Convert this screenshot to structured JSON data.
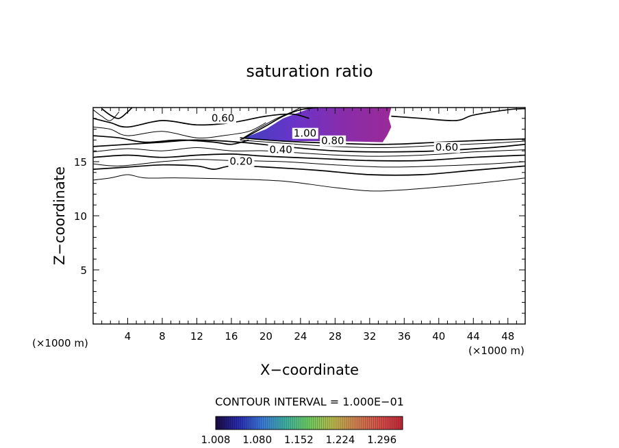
{
  "chart_data": {
    "type": "contour",
    "title": "saturation ratio",
    "xlabel": "X−coordinate",
    "ylabel": "Z−coordinate",
    "x_unit_left": "(×1000 m)",
    "x_unit_right": "(×1000 m)",
    "xlim": [
      0,
      50
    ],
    "ylim": [
      0,
      20
    ],
    "x_ticks": [
      4,
      8,
      12,
      16,
      20,
      24,
      28,
      32,
      36,
      40,
      44,
      48
    ],
    "y_ticks": [
      5,
      10,
      15
    ],
    "contour_interval_text": "CONTOUR INTERVAL = 1.000E−01",
    "contour_labels": [
      {
        "text": "0.60",
        "x": 13.7,
        "y": 18.7
      },
      {
        "text": "1.00",
        "x": 23.2,
        "y": 17.3
      },
      {
        "text": "0.80",
        "x": 26.4,
        "y": 16.6
      },
      {
        "text": "0.40",
        "x": 20.4,
        "y": 15.8
      },
      {
        "text": "0.60",
        "x": 39.6,
        "y": 16.0
      },
      {
        "text": "0.20",
        "x": 15.8,
        "y": 14.7
      }
    ],
    "contour_lines": [
      {
        "level": 0.1,
        "points": [
          [
            0,
            13.3
          ],
          [
            2,
            13.5
          ],
          [
            4,
            13.8
          ],
          [
            6,
            13.5
          ],
          [
            10,
            13.5
          ],
          [
            16,
            13.4
          ],
          [
            22,
            13.2
          ],
          [
            28,
            12.6
          ],
          [
            32,
            12.3
          ],
          [
            36,
            12.4
          ],
          [
            42,
            12.8
          ],
          [
            48,
            13.3
          ],
          [
            50,
            13.5
          ]
        ]
      },
      {
        "level": 0.2,
        "points": [
          [
            0,
            14.3
          ],
          [
            4,
            14.5
          ],
          [
            8,
            14.7
          ],
          [
            12,
            14.6
          ],
          [
            14,
            14.3
          ],
          [
            16,
            14.6
          ],
          [
            20,
            14.5
          ],
          [
            26,
            14.2
          ],
          [
            32,
            13.8
          ],
          [
            38,
            13.8
          ],
          [
            44,
            14.2
          ],
          [
            50,
            14.6
          ]
        ]
      },
      {
        "level": 0.3,
        "points": [
          [
            0,
            14.8
          ],
          [
            3,
            14.6
          ],
          [
            8,
            15.0
          ],
          [
            12,
            15.2
          ],
          [
            16,
            15.1
          ],
          [
            22,
            15.0
          ],
          [
            28,
            14.7
          ],
          [
            34,
            14.5
          ],
          [
            40,
            14.6
          ],
          [
            46,
            14.8
          ],
          [
            50,
            15.0
          ]
        ]
      },
      {
        "level": 0.4,
        "points": [
          [
            0,
            15.4
          ],
          [
            4,
            15.6
          ],
          [
            8,
            15.4
          ],
          [
            12,
            15.6
          ],
          [
            16,
            15.7
          ],
          [
            20,
            15.5
          ],
          [
            26,
            15.3
          ],
          [
            32,
            15.1
          ],
          [
            38,
            15.1
          ],
          [
            44,
            15.4
          ],
          [
            50,
            15.6
          ]
        ]
      },
      {
        "level": 0.5,
        "points": [
          [
            0,
            15.9
          ],
          [
            4,
            16.2
          ],
          [
            8,
            16.0
          ],
          [
            12,
            16.3
          ],
          [
            16,
            16.0
          ],
          [
            20,
            16.0
          ],
          [
            26,
            15.7
          ],
          [
            32,
            15.5
          ],
          [
            38,
            15.6
          ],
          [
            44,
            15.9
          ],
          [
            50,
            16.1
          ]
        ]
      },
      {
        "level": 0.6,
        "points": [
          [
            0,
            16.4
          ],
          [
            4,
            16.6
          ],
          [
            8,
            16.8
          ],
          [
            12,
            17.0
          ],
          [
            17,
            16.8
          ],
          [
            22,
            16.4
          ],
          [
            28,
            16.0
          ],
          [
            34,
            15.9
          ],
          [
            40,
            16.0
          ],
          [
            46,
            16.3
          ],
          [
            50,
            16.6
          ]
        ]
      },
      {
        "level": 0.7,
        "points": [
          [
            17,
            17.0
          ],
          [
            22,
            16.7
          ],
          [
            28,
            16.4
          ],
          [
            34,
            16.3
          ],
          [
            40,
            16.5
          ],
          [
            46,
            16.7
          ],
          [
            50,
            16.9
          ]
        ]
      },
      {
        "level": 0.8,
        "points": [
          [
            17,
            17.2
          ],
          [
            22,
            16.9
          ],
          [
            28,
            16.7
          ],
          [
            34,
            16.6
          ],
          [
            40,
            16.8
          ],
          [
            46,
            17.0
          ],
          [
            50,
            17.1
          ]
        ]
      },
      {
        "level": 0.6,
        "points": [
          [
            0,
            19.0
          ],
          [
            2,
            18.6
          ],
          [
            4,
            18.2
          ],
          [
            8,
            18.8
          ],
          [
            12,
            18.4
          ],
          [
            16,
            18.6
          ],
          [
            20,
            19.2
          ],
          [
            23,
            19.4
          ],
          [
            25,
            19.0
          ]
        ]
      },
      {
        "level": 0.5,
        "points": [
          [
            0,
            18.2
          ],
          [
            2,
            18.0
          ],
          [
            4,
            17.4
          ],
          [
            8,
            17.8
          ],
          [
            12,
            17.2
          ],
          [
            15,
            17.4
          ],
          [
            18,
            17.8
          ],
          [
            20,
            18.6
          ]
        ]
      },
      {
        "level": 0.4,
        "points": [
          [
            0,
            17.4
          ],
          [
            3,
            17.2
          ],
          [
            6,
            16.8
          ],
          [
            10,
            17.0
          ],
          [
            14,
            16.8
          ],
          [
            16,
            16.6
          ],
          [
            18,
            17.0
          ]
        ]
      },
      {
        "level": 0.7,
        "points": [
          [
            0,
            19.8
          ],
          [
            1,
            19.2
          ],
          [
            2,
            18.8
          ],
          [
            3,
            19.6
          ]
        ]
      },
      {
        "level": 0.8,
        "points": [
          [
            1,
            19.9
          ],
          [
            2,
            19.3
          ],
          [
            3,
            19.0
          ],
          [
            4,
            19.6
          ],
          [
            4.5,
            20
          ]
        ]
      },
      {
        "level": 0.6,
        "points": [
          [
            34.5,
            19.2
          ],
          [
            38,
            19.0
          ],
          [
            42,
            18.8
          ],
          [
            44,
            19.3
          ],
          [
            48,
            19.8
          ],
          [
            50,
            19.9
          ]
        ]
      },
      {
        "level": 0.9,
        "points": [
          [
            17,
            17.0
          ],
          [
            19,
            18.0
          ],
          [
            21,
            18.9
          ],
          [
            23,
            19.6
          ],
          [
            24,
            20
          ]
        ]
      },
      {
        "level": 1.0,
        "points": [
          [
            17.3,
            17.1
          ],
          [
            20,
            18.3
          ],
          [
            22,
            19.2
          ],
          [
            24,
            19.8
          ],
          [
            26,
            20
          ]
        ]
      }
    ],
    "shaded_region": {
      "description_free": true,
      "polygon": [
        [
          17.5,
          17.2
        ],
        [
          20,
          18.0
        ],
        [
          22,
          19.0
        ],
        [
          25,
          19.9
        ],
        [
          27,
          20
        ],
        [
          34.5,
          20
        ],
        [
          34.2,
          19.0
        ],
        [
          34.5,
          18.2
        ],
        [
          34.0,
          17.4
        ],
        [
          33.5,
          16.8
        ],
        [
          28,
          16.9
        ],
        [
          24,
          16.9
        ],
        [
          20,
          17.0
        ]
      ],
      "min_value": 1.008,
      "max_value": 1.33
    },
    "colorbar": {
      "tick_labels": [
        "1.008",
        "1.080",
        "1.152",
        "1.224",
        "1.296"
      ],
      "min": 1.008,
      "max": 1.332,
      "colors": [
        "#1a0a40",
        "#2a2cb0",
        "#3b7ad8",
        "#3fb0a0",
        "#6dcc60",
        "#b7b84c",
        "#d08050",
        "#d4504a",
        "#c02838"
      ]
    }
  }
}
